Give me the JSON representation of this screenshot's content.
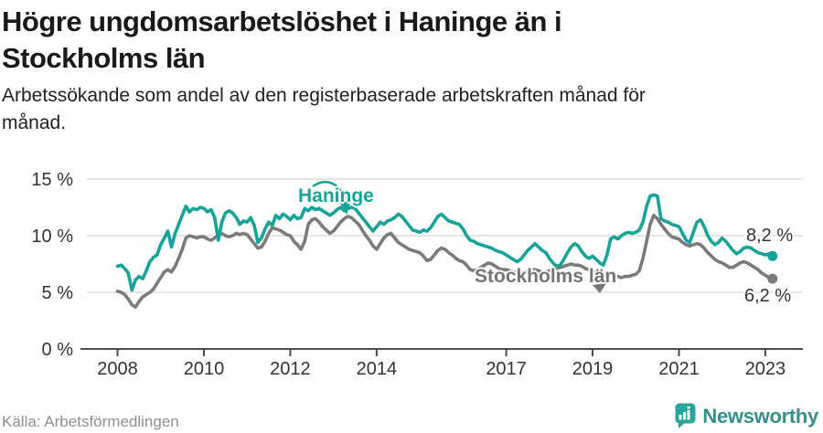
{
  "header": {
    "title_line1": "Högre ungdomsarbetslöshet i Haninge än i",
    "title_line2": "Stockholms län",
    "subtitle_line1": "Arbetssökande som andel av den registerbaserade arbetskraften månad för",
    "subtitle_line2": "månad."
  },
  "footer": {
    "source": "Källa: Arbetsförmedlingen",
    "brand": "Newsworthy"
  },
  "colors": {
    "haninge": "#17a398",
    "stockholm": "#7b7b7b",
    "grid": "#d8d8d8",
    "axis": "#4d4d4d",
    "tick_text": "#333333",
    "brand_teal": "#2ba59c"
  },
  "chart_data": {
    "type": "line",
    "x_unit": "month",
    "x_start": "2008-01",
    "x_end": "2023-03",
    "grid": true,
    "ylim": [
      0,
      15
    ],
    "y_ticks": [
      {
        "value": 0,
        "label": "0 %"
      },
      {
        "value": 5,
        "label": "5 %"
      },
      {
        "value": 10,
        "label": "10 %"
      },
      {
        "value": 15,
        "label": "15 %"
      }
    ],
    "x_ticks": [
      {
        "year": 2008,
        "label": "2008"
      },
      {
        "year": 2010,
        "label": "2010"
      },
      {
        "year": 2012,
        "label": "2012"
      },
      {
        "year": 2014,
        "label": "2014"
      },
      {
        "year": 2017,
        "label": "2017"
      },
      {
        "year": 2019,
        "label": "2019"
      },
      {
        "year": 2021,
        "label": "2021"
      },
      {
        "year": 2023,
        "label": "2023"
      }
    ],
    "series": [
      {
        "name": "Haninge",
        "color": "#17a398",
        "end_value": 8.2,
        "end_label": "8,2 %",
        "values": [
          7.3,
          7.4,
          7.1,
          6.7,
          5.2,
          6.1,
          6.4,
          6.2,
          6.9,
          7.7,
          8.1,
          8.3,
          9.2,
          9.8,
          10.4,
          9.0,
          10.2,
          11.0,
          11.8,
          12.6,
          12.1,
          12.4,
          12.3,
          12.5,
          12.4,
          12.1,
          12.3,
          11.6,
          9.6,
          11.2,
          12.0,
          12.2,
          12.0,
          11.6,
          11.0,
          11.3,
          11.2,
          11.6,
          10.9,
          9.4,
          9.8,
          10.6,
          11.2,
          10.9,
          11.8,
          11.5,
          11.9,
          11.7,
          11.4,
          11.8,
          11.5,
          11.6,
          12.4,
          12.2,
          12.5,
          12.3,
          12.4,
          12.2,
          12.0,
          11.8,
          12.0,
          12.3,
          12.5,
          12.2,
          12.4,
          12.5,
          12.4,
          12.0,
          11.6,
          11.2,
          10.8,
          10.4,
          10.8,
          11.2,
          11.0,
          11.3,
          11.4,
          11.6,
          11.9,
          11.7,
          11.3,
          10.9,
          10.5,
          10.4,
          10.3,
          10.5,
          10.4,
          10.7,
          11.2,
          11.7,
          11.9,
          11.6,
          11.3,
          11.2,
          11.1,
          11.0,
          10.6,
          10.0,
          9.6,
          9.5,
          9.3,
          9.2,
          9.1,
          9.0,
          8.9,
          8.7,
          8.6,
          8.5,
          8.3,
          8.1,
          7.9,
          7.7,
          7.9,
          8.3,
          8.7,
          9.0,
          9.3,
          9.0,
          8.7,
          8.5,
          8.0,
          7.6,
          7.3,
          7.4,
          7.9,
          8.5,
          9.0,
          9.3,
          9.1,
          8.6,
          8.2,
          8.0,
          8.2,
          7.9,
          7.6,
          7.4,
          8.3,
          9.7,
          9.9,
          9.7,
          10.0,
          10.2,
          10.3,
          10.2,
          10.3,
          10.5,
          11.2,
          12.6,
          13.5,
          13.6,
          13.5,
          11.5,
          11.3,
          11.2,
          11.0,
          10.9,
          10.8,
          10.2,
          9.6,
          9.4,
          10.3,
          11.2,
          11.4,
          10.8,
          10.0,
          9.5,
          9.2,
          9.4,
          9.8,
          9.5,
          9.1,
          8.7,
          8.4,
          8.6,
          8.9,
          9.0,
          8.9,
          8.7,
          8.5,
          8.4,
          8.3,
          8.4,
          8.2
        ]
      },
      {
        "name": "Stockholms län",
        "color": "#7b7b7b",
        "end_value": 6.2,
        "end_label": "6,2 %",
        "values": [
          5.1,
          5.0,
          4.8,
          4.4,
          3.9,
          3.7,
          4.2,
          4.6,
          4.8,
          5.0,
          5.3,
          5.8,
          6.3,
          6.8,
          7.0,
          6.8,
          7.3,
          8.0,
          8.8,
          9.8,
          10.0,
          9.9,
          9.8,
          9.9,
          9.9,
          9.7,
          9.6,
          9.8,
          10.1,
          10.2,
          10.0,
          9.9,
          10.0,
          10.2,
          10.1,
          10.2,
          10.1,
          9.7,
          9.3,
          8.9,
          9.0,
          9.5,
          10.2,
          10.7,
          10.6,
          10.5,
          10.3,
          10.1,
          10.0,
          9.5,
          9.2,
          8.8,
          9.5,
          11.0,
          11.4,
          11.5,
          11.2,
          10.8,
          10.5,
          10.2,
          10.4,
          10.8,
          11.2,
          11.5,
          11.7,
          11.6,
          11.3,
          11.0,
          10.5,
          10.0,
          9.6,
          9.1,
          8.8,
          9.3,
          9.8,
          10.1,
          10.2,
          9.8,
          9.4,
          9.2,
          9.0,
          8.8,
          8.7,
          8.6,
          8.5,
          8.2,
          7.8,
          7.9,
          8.3,
          8.7,
          8.9,
          8.8,
          8.5,
          8.3,
          8.0,
          7.8,
          7.7,
          7.4,
          7.0,
          6.9,
          7.0,
          7.2,
          7.4,
          7.6,
          7.5,
          7.3,
          7.1,
          7.0,
          7.0,
          6.9,
          6.8,
          6.7,
          6.7,
          6.8,
          6.9,
          7.0,
          7.0,
          6.9,
          6.8,
          6.8,
          6.9,
          7.0,
          7.1,
          7.2,
          7.3,
          7.4,
          7.5,
          7.4,
          7.4,
          7.3,
          7.1,
          7.0,
          6.9,
          6.8,
          6.7,
          6.6,
          6.5,
          6.5,
          6.4,
          6.4,
          6.3,
          6.4,
          6.4,
          6.5,
          6.6,
          6.9,
          8.0,
          9.5,
          11.0,
          11.8,
          11.5,
          11.0,
          10.6,
          10.2,
          9.9,
          9.8,
          9.7,
          9.4,
          9.2,
          9.1,
          9.2,
          9.3,
          9.2,
          8.9,
          8.5,
          8.2,
          7.9,
          7.7,
          7.6,
          7.4,
          7.2,
          7.2,
          7.4,
          7.6,
          7.7,
          7.6,
          7.4,
          7.2,
          7.0,
          6.7,
          6.5,
          6.3,
          6.2
        ]
      }
    ]
  }
}
